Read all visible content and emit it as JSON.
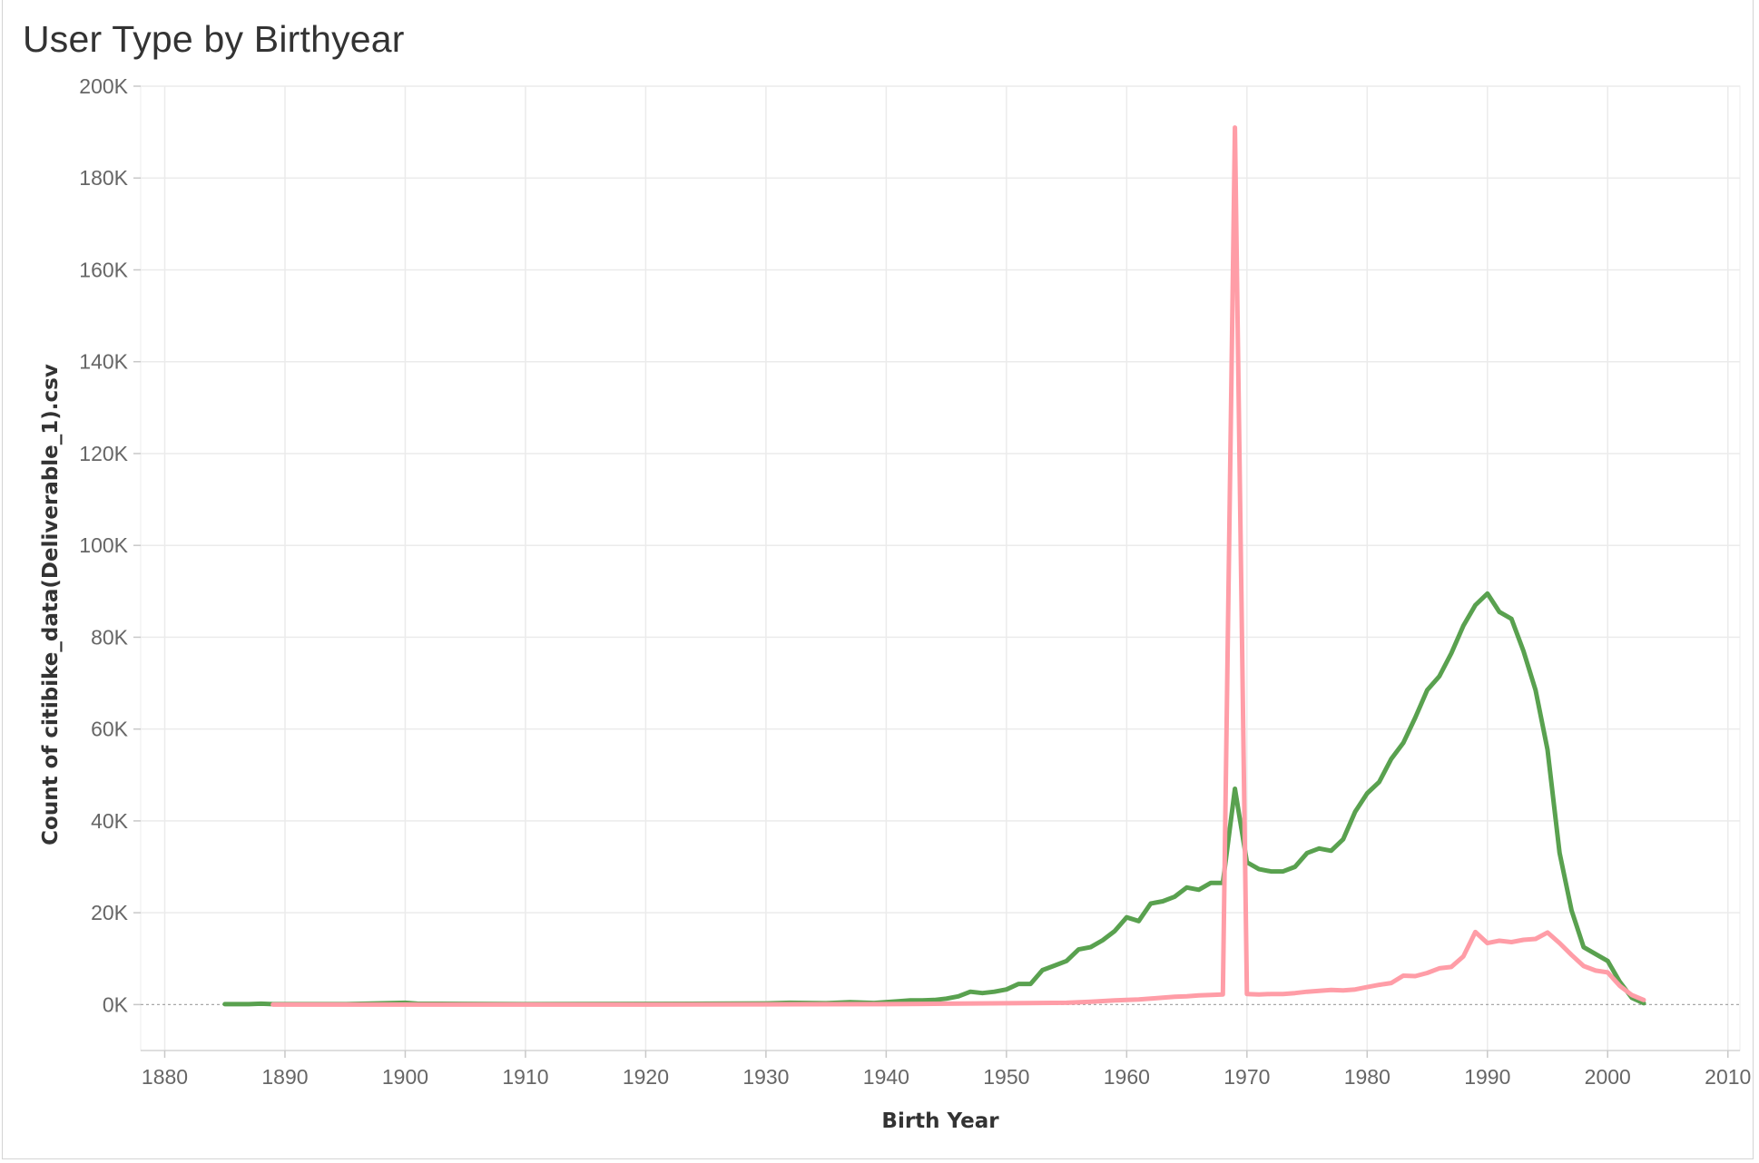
{
  "chart_data": {
    "type": "line",
    "title": "User Type by Birthyear",
    "xlabel": "Birth Year",
    "ylabel": "Count of citibike_data(Deliverable_1).csv",
    "xlim": [
      1878,
      2011
    ],
    "ylim": [
      -10000,
      200000
    ],
    "x_ticks": [
      1880,
      1890,
      1900,
      1910,
      1920,
      1930,
      1940,
      1950,
      1960,
      1970,
      1980,
      1990,
      2000,
      2010
    ],
    "y_ticks": [
      0,
      20000,
      40000,
      60000,
      80000,
      100000,
      120000,
      140000,
      160000,
      180000,
      200000
    ],
    "y_tick_labels": [
      "0K",
      "20K",
      "40K",
      "60K",
      "80K",
      "100K",
      "120K",
      "140K",
      "160K",
      "180K",
      "200K"
    ],
    "grid": true,
    "zero_line": "dashed",
    "series": [
      {
        "color": "#59a14f",
        "points": [
          [
            1885,
            100
          ],
          [
            1887,
            100
          ],
          [
            1888,
            200
          ],
          [
            1889,
            100
          ],
          [
            1890,
            100
          ],
          [
            1895,
            100
          ],
          [
            1900,
            400
          ],
          [
            1901,
            200
          ],
          [
            1910,
            100
          ],
          [
            1920,
            150
          ],
          [
            1925,
            200
          ],
          [
            1930,
            250
          ],
          [
            1932,
            400
          ],
          [
            1935,
            300
          ],
          [
            1937,
            500
          ],
          [
            1939,
            350
          ],
          [
            1941,
            700
          ],
          [
            1942,
            900
          ],
          [
            1943,
            900
          ],
          [
            1944,
            1000
          ],
          [
            1945,
            1300
          ],
          [
            1946,
            1800
          ],
          [
            1947,
            2800
          ],
          [
            1948,
            2500
          ],
          [
            1949,
            2800
          ],
          [
            1950,
            3300
          ],
          [
            1951,
            4500
          ],
          [
            1952,
            4500
          ],
          [
            1953,
            7500
          ],
          [
            1954,
            8500
          ],
          [
            1955,
            9500
          ],
          [
            1956,
            12000
          ],
          [
            1957,
            12500
          ],
          [
            1958,
            14000
          ],
          [
            1959,
            16000
          ],
          [
            1960,
            19000
          ],
          [
            1961,
            18200
          ],
          [
            1962,
            22000
          ],
          [
            1963,
            22500
          ],
          [
            1964,
            23500
          ],
          [
            1965,
            25500
          ],
          [
            1966,
            25000
          ],
          [
            1967,
            26500
          ],
          [
            1968,
            26500
          ],
          [
            1969,
            47000
          ],
          [
            1970,
            31000
          ],
          [
            1971,
            29500
          ],
          [
            1972,
            29000
          ],
          [
            1973,
            29000
          ],
          [
            1974,
            30000
          ],
          [
            1975,
            33000
          ],
          [
            1976,
            34000
          ],
          [
            1977,
            33500
          ],
          [
            1978,
            36000
          ],
          [
            1979,
            42000
          ],
          [
            1980,
            46000
          ],
          [
            1981,
            48500
          ],
          [
            1982,
            53500
          ],
          [
            1983,
            57000
          ],
          [
            1984,
            62500
          ],
          [
            1985,
            68500
          ],
          [
            1986,
            71500
          ],
          [
            1987,
            76500
          ],
          [
            1988,
            82500
          ],
          [
            1989,
            87000
          ],
          [
            1990,
            89500
          ],
          [
            1991,
            85500
          ],
          [
            1992,
            84000
          ],
          [
            1993,
            77000
          ],
          [
            1994,
            68500
          ],
          [
            1995,
            55500
          ],
          [
            1996,
            33000
          ],
          [
            1997,
            20500
          ],
          [
            1998,
            12500
          ],
          [
            1999,
            11000
          ],
          [
            2000,
            9500
          ],
          [
            2001,
            5000
          ],
          [
            2002,
            1500
          ],
          [
            2003,
            300
          ]
        ]
      },
      {
        "color": "#ff9da7",
        "points": [
          [
            1889,
            0
          ],
          [
            1895,
            0
          ],
          [
            1900,
            0
          ],
          [
            1910,
            0
          ],
          [
            1920,
            0
          ],
          [
            1930,
            50
          ],
          [
            1940,
            100
          ],
          [
            1945,
            200
          ],
          [
            1950,
            300
          ],
          [
            1955,
            400
          ],
          [
            1957,
            600
          ],
          [
            1959,
            900
          ],
          [
            1960,
            1000
          ],
          [
            1961,
            1100
          ],
          [
            1962,
            1300
          ],
          [
            1963,
            1500
          ],
          [
            1964,
            1700
          ],
          [
            1965,
            1800
          ],
          [
            1966,
            2000
          ],
          [
            1967,
            2100
          ],
          [
            1968,
            2200
          ],
          [
            1969,
            191000
          ],
          [
            1970,
            2300
          ],
          [
            1971,
            2200
          ],
          [
            1972,
            2300
          ],
          [
            1973,
            2300
          ],
          [
            1974,
            2500
          ],
          [
            1975,
            2800
          ],
          [
            1976,
            3000
          ],
          [
            1977,
            3200
          ],
          [
            1978,
            3100
          ],
          [
            1979,
            3300
          ],
          [
            1980,
            3800
          ],
          [
            1981,
            4300
          ],
          [
            1982,
            4700
          ],
          [
            1983,
            6300
          ],
          [
            1984,
            6200
          ],
          [
            1985,
            6900
          ],
          [
            1986,
            7900
          ],
          [
            1987,
            8200
          ],
          [
            1988,
            10500
          ],
          [
            1989,
            15800
          ],
          [
            1990,
            13400
          ],
          [
            1991,
            13900
          ],
          [
            1992,
            13600
          ],
          [
            1993,
            14100
          ],
          [
            1994,
            14300
          ],
          [
            1995,
            15700
          ],
          [
            1996,
            13400
          ],
          [
            1997,
            10800
          ],
          [
            1998,
            8400
          ],
          [
            1999,
            7400
          ],
          [
            2000,
            7000
          ],
          [
            2001,
            4100
          ],
          [
            2002,
            2100
          ],
          [
            2003,
            1000
          ]
        ]
      }
    ]
  }
}
